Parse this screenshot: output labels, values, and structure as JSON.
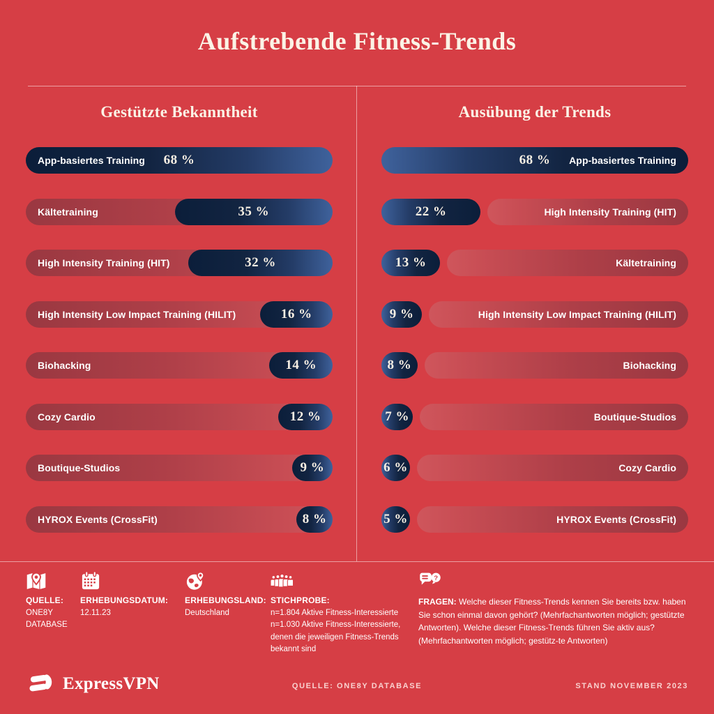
{
  "title": "Aufstrebende Fitness-Trends",
  "colors": {
    "background": "#d63e45",
    "bar_navy_dark": "#0b1e3a",
    "bar_navy_light": "#3f629c",
    "bar_red_dark": "#9a3841",
    "bar_red_light": "#cf565c",
    "heading_cream": "#fbf3e6"
  },
  "chart_data": {
    "type": "bar",
    "orientation": "horizontal",
    "unit": "%",
    "max_scale": 68,
    "panels": [
      {
        "id": "awareness",
        "title": "Gestützte Bekanntheit",
        "align": "left",
        "bars": [
          {
            "label": "App-basiertes Training",
            "value": 68,
            "display": "68 %"
          },
          {
            "label": "Kältetraining",
            "value": 35,
            "display": "35 %"
          },
          {
            "label": "High Intensity Training (HIT)",
            "value": 32,
            "display": "32 %"
          },
          {
            "label": "High Intensity Low Impact Training (HILIT)",
            "value": 16,
            "display": "16 %"
          },
          {
            "label": "Biohacking",
            "value": 14,
            "display": "14 %"
          },
          {
            "label": "Cozy Cardio",
            "value": 12,
            "display": "12 %"
          },
          {
            "label": "Boutique-Studios",
            "value": 9,
            "display": "9 %"
          },
          {
            "label": "HYROX Events (CrossFit)",
            "value": 8,
            "display": "8 %"
          }
        ]
      },
      {
        "id": "practice",
        "title": "Ausübung der Trends",
        "align": "right",
        "bars": [
          {
            "label": "App-basiertes Training",
            "value": 68,
            "display": "68 %"
          },
          {
            "label": "High Intensity Training (HIT)",
            "value": 22,
            "display": "22 %"
          },
          {
            "label": "Kältetraining",
            "value": 13,
            "display": "13 %"
          },
          {
            "label": "High Intensity Low Impact Training (HILIT)",
            "value": 9,
            "display": "9 %"
          },
          {
            "label": "Biohacking",
            "value": 8,
            "display": "8 %"
          },
          {
            "label": "Boutique-Studios",
            "value": 7,
            "display": "7 %"
          },
          {
            "label": "Cozy Cardio",
            "value": 6,
            "display": "6 %"
          },
          {
            "label": "HYROX Events (CrossFit)",
            "value": 5,
            "display": "5 %"
          }
        ]
      }
    ]
  },
  "footer": {
    "facts": [
      {
        "icon": "map-pin-icon",
        "label": "QUELLE:",
        "value": "ONE8Y DATABASE"
      },
      {
        "icon": "calendar-icon",
        "label": "ERHEBUNGSDATUM:",
        "value": "12.11.23"
      },
      {
        "icon": "globe-pin-icon",
        "label": "ERHEBUNGSLAND:",
        "value": "Deutschland"
      },
      {
        "icon": "people-icon",
        "label": "STICHPROBE:",
        "value": "n=1.804 Aktive Fitness-Interessierte\nn=1.030 Aktive Fitness-Interessierte,\ndenen die jeweiligen Fitness-Trends\nbekannt sind"
      },
      {
        "icon": "chat-icon",
        "label": "FRAGEN:",
        "value": "Welche dieser Fitness-Trends kennen Sie bereits bzw. haben Sie schon einmal davon gehört? (Mehrfachantworten möglich; gestützte Antworten). Welche dieser Fitness-Trends führen Sie aktiv aus? (Mehrfachantworten möglich; gestütz-te Antworten)"
      }
    ]
  },
  "bottombar": {
    "brand": "ExpressVPN",
    "source": "QUELLE: ONE8Y DATABASE",
    "stand": "STAND NOVEMBER 2023"
  }
}
